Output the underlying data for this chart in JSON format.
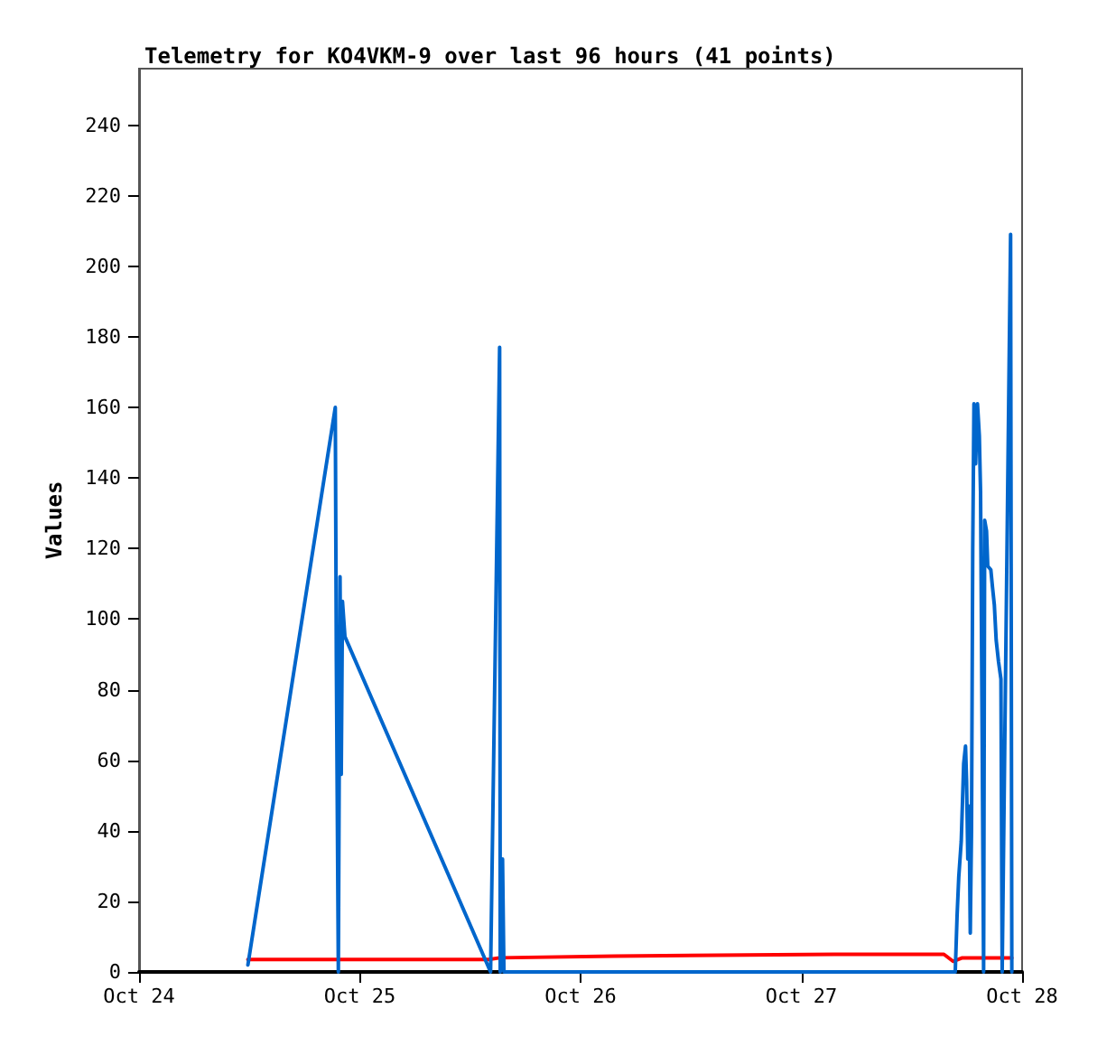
{
  "chart_data": {
    "type": "line",
    "title": "Telemetry for KO4VKM-9 over last 96 hours (41 points)",
    "ylabel": "Values",
    "xlim": [
      "--10-24",
      "--10-28"
    ],
    "xticks": [
      {
        "value": "--10-24",
        "label": "Oct 24"
      },
      {
        "value": "--10-25",
        "label": "Oct 25"
      },
      {
        "value": "--10-26",
        "label": "Oct 26"
      },
      {
        "value": "--10-27",
        "label": "Oct 27"
      },
      {
        "value": "--10-28",
        "label": "Oct 28"
      }
    ],
    "ylim": [
      0,
      256
    ],
    "yticks": [
      0,
      20,
      40,
      60,
      80,
      100,
      120,
      140,
      160,
      180,
      200,
      220,
      240
    ],
    "grid": false,
    "marker": "none",
    "line_style": "solid",
    "series": [
      {
        "color": "#ff0000",
        "x": [
          "--10-24T11:50",
          "--10-25T14:00",
          "--10-25T15:12",
          "--10-26T03:40",
          "--10-27T03:35",
          "--10-27T15:30",
          "--10-27T16:30",
          "--10-27T17:30",
          "--10-27T22:53"
        ],
        "values": [
          3.5,
          3.5,
          4,
          4.5,
          5,
          5,
          3,
          4,
          4
        ]
      },
      {
        "color": "#0066cc",
        "x": [
          "--10-24T11:50",
          "--10-24T21:20",
          "--10-24T21:27",
          "--10-24T21:40",
          "--10-24T21:51",
          "--10-24T21:59",
          "--10-24T22:07",
          "--10-24T22:23",
          "--10-25T14:13",
          "--10-25T15:12",
          "--10-25T15:16",
          "--10-25T15:31",
          "--10-25T15:40",
          "--10-27T16:44",
          "--10-27T16:56",
          "--10-27T17:07",
          "--10-27T17:23",
          "--10-27T17:31",
          "--10-27T17:39",
          "--10-27T17:51",
          "--10-27T17:58",
          "--10-27T18:06",
          "--10-27T18:14",
          "--10-27T18:22",
          "--10-27T18:30",
          "--10-27T18:38",
          "--10-27T18:46",
          "--10-27T18:57",
          "--10-27T19:09",
          "--10-27T19:21",
          "--10-27T19:29",
          "--10-27T19:40",
          "--10-27T19:49",
          "--10-27T19:56",
          "--10-27T20:08",
          "--10-27T20:16",
          "--10-27T20:36",
          "--10-27T20:47",
          "--10-27T20:59",
          "--10-27T21:11",
          "--10-27T21:26",
          "--10-27T21:42",
          "--10-27T21:50",
          "--10-27T22:45",
          "--10-27T22:53"
        ],
        "values": [
          2,
          160,
          88,
          0,
          112,
          56,
          105,
          95,
          0,
          177,
          0,
          32,
          0,
          0,
          16,
          27,
          37,
          48,
          59,
          64,
          54,
          32,
          47,
          11,
          40,
          120,
          161,
          144,
          161,
          152,
          136,
          64,
          0,
          128,
          125,
          115,
          114,
          109,
          104,
          94,
          88,
          83,
          0,
          209,
          0
        ]
      }
    ]
  }
}
